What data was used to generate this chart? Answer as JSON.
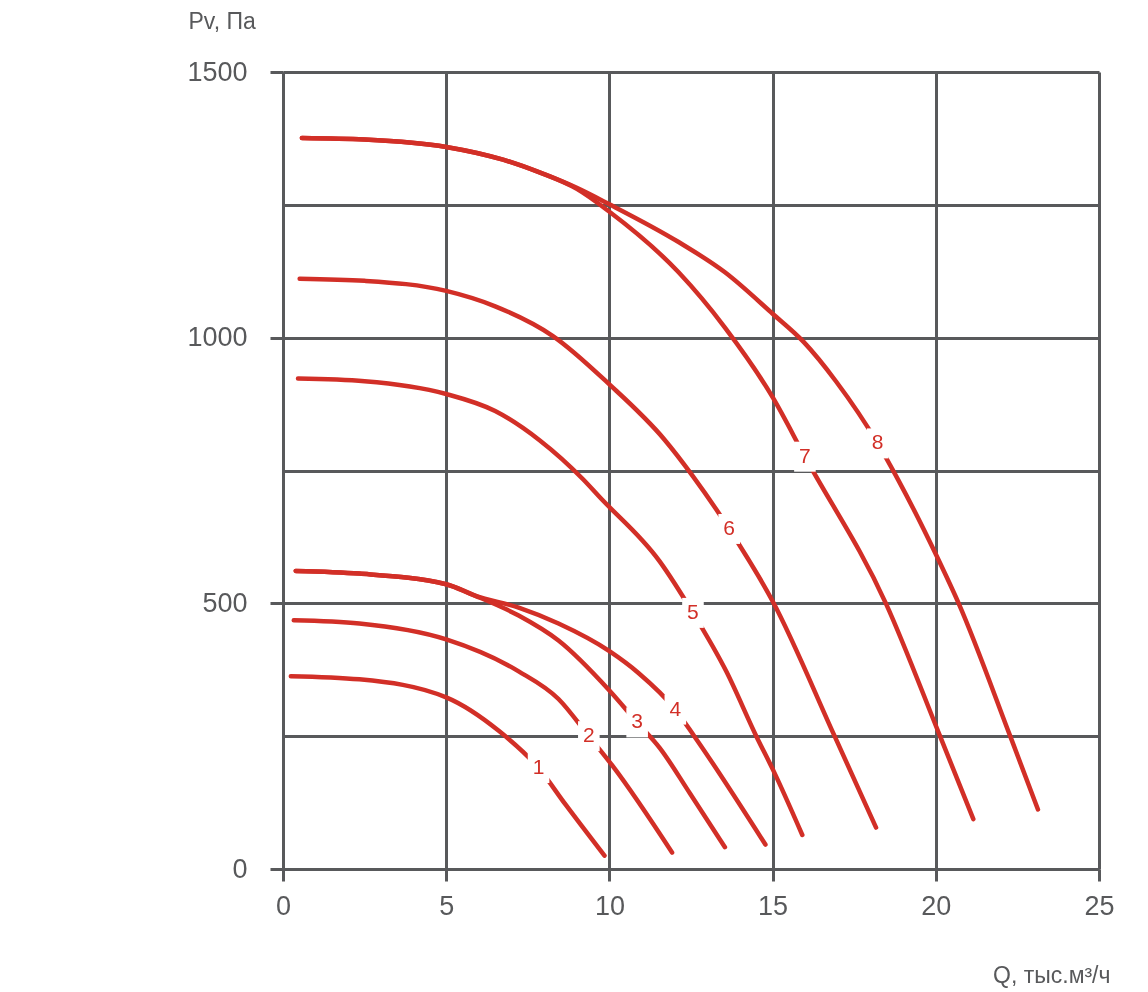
{
  "chart_data": {
    "type": "line",
    "xlabel": "Q, тыс.м³/ч",
    "ylabel": "Pv, Па",
    "xlim": [
      0,
      25
    ],
    "ylim": [
      0,
      1500
    ],
    "xticks": [
      0,
      5,
      10,
      15,
      20,
      25
    ],
    "yticks": [
      0,
      {
        "value": 250,
        "label": null
      },
      500,
      {
        "value": 750,
        "label": null
      },
      1000,
      {
        "value": 1250,
        "label": null
      },
      1500
    ],
    "grid": true,
    "legend": false,
    "marker": "none",
    "line_style": "solid",
    "series": [
      {
        "name": "1",
        "color": "#d22f27",
        "x": [
          0.24,
          2.34,
          5,
          6.61,
          7.83,
          8.66,
          9.85
        ],
        "values": [
          363,
          357,
          323,
          260,
          190,
          121,
          25
        ]
      },
      {
        "name": "2",
        "color": "#d22f27",
        "x": [
          0.33,
          2.34,
          5,
          7.22,
          8.44,
          9.37,
          10.11,
          11.92
        ],
        "values": [
          468,
          462,
          432,
          372,
          320,
          250,
          193,
          31
        ]
      },
      {
        "name": "3",
        "color": "#d22f27",
        "x": [
          0.39,
          2.34,
          5,
          5.9,
          7.22,
          8.44,
          10,
          10.85,
          11.54,
          12.46,
          13.54
        ],
        "values": [
          561,
          556,
          536,
          514,
          477,
          430,
          336,
          276,
          228,
          143,
          41
        ]
      },
      {
        "name": "4",
        "color": "#d22f27",
        "x": [
          0.39,
          2.34,
          5,
          5.9,
          7.22,
          8.44,
          10,
          10.89,
          12.02,
          12.6,
          14.78
        ],
        "values": [
          561,
          556,
          536,
          514,
          492,
          462,
          410,
          369,
          300,
          250,
          46
        ]
      },
      {
        "name": "5",
        "color": "#d22f27",
        "x": [
          0.46,
          2.5,
          5,
          6.5,
          7.86,
          9.2,
          9.7,
          11.54,
          12.56,
          13.58,
          14.5,
          15.01,
          15.91
        ],
        "values": [
          923,
          918,
          894,
          862,
          807,
          733,
          700,
          579,
          482,
          372,
          250,
          187,
          64
        ]
      },
      {
        "name": "6",
        "color": "#d22f27",
        "x": [
          0.51,
          2.5,
          5,
          6.5,
          8.27,
          10,
          11.69,
          12.55,
          13.67,
          15.01,
          16.9,
          18.17
        ],
        "values": [
          1111,
          1107,
          1088,
          1059,
          1003,
          912,
          808,
          740,
          640,
          503,
          250,
          78
        ]
      },
      {
        "name": "7",
        "color": "#d22f27",
        "x": [
          0.58,
          2.5,
          5,
          6.74,
          7.86,
          9,
          10,
          12.12,
          13.54,
          15,
          15.99,
          18.47,
          20.13,
          21.15
        ],
        "values": [
          1376,
          1373,
          1359,
          1335,
          1311,
          1280,
          1237,
          1123,
          1019,
          888,
          776,
          500,
          250,
          94
        ]
      },
      {
        "name": "8",
        "color": "#d22f27",
        "x": [
          0.58,
          2.5,
          5,
          6.74,
          7.86,
          9,
          10,
          12.12,
          13.54,
          15,
          15.95,
          16.94,
          18.22,
          18.86,
          20.02,
          20.7,
          22.28,
          23.13
        ],
        "values": [
          1376,
          1373,
          1359,
          1335,
          1311,
          1282,
          1251,
          1180,
          1123,
          1045,
          992,
          918,
          801,
          731,
          590,
          500,
          250,
          112
        ]
      }
    ]
  }
}
